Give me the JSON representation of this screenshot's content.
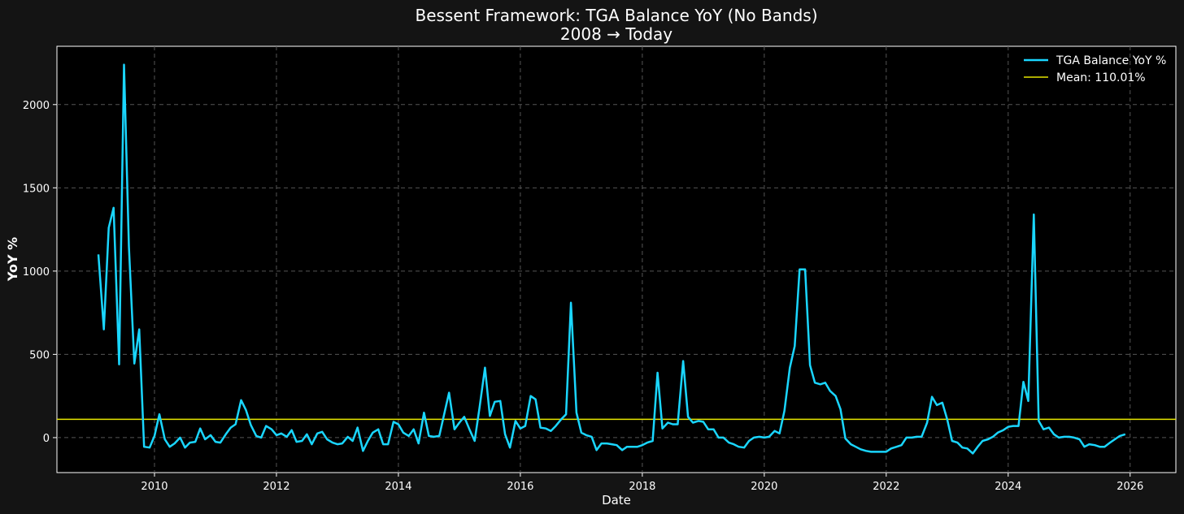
{
  "chart_data": {
    "type": "line",
    "title": "Bessent Framework: TGA Balance YoY (No Bands)",
    "subtitle": "2008 → Today",
    "xlabel": "Date",
    "ylabel": "YoY %",
    "xlim": [
      2008.4,
      2026.75
    ],
    "ylim": [
      -210,
      2350
    ],
    "xticks": [
      2010,
      2012,
      2014,
      2016,
      2018,
      2020,
      2022,
      2024,
      2026
    ],
    "yticks": [
      0,
      500,
      1000,
      1500,
      2000
    ],
    "grid": true,
    "legend_position": "top-right",
    "background": "#000000",
    "series": [
      {
        "name": "TGA Balance YoY %",
        "color": "#1ad6ff",
        "x": [
          2009.08,
          2009.17,
          2009.25,
          2009.33,
          2009.42,
          2009.5,
          2009.58,
          2009.67,
          2009.75,
          2009.83,
          2009.92,
          2010.0,
          2010.08,
          2010.17,
          2010.25,
          2010.33,
          2010.42,
          2010.5,
          2010.58,
          2010.67,
          2010.75,
          2010.83,
          2010.92,
          2011.0,
          2011.08,
          2011.17,
          2011.25,
          2011.33,
          2011.42,
          2011.5,
          2011.58,
          2011.67,
          2011.75,
          2011.83,
          2011.92,
          2012.0,
          2012.08,
          2012.17,
          2012.25,
          2012.33,
          2012.42,
          2012.5,
          2012.58,
          2012.67,
          2012.75,
          2012.83,
          2012.92,
          2013.0,
          2013.08,
          2013.17,
          2013.25,
          2013.33,
          2013.42,
          2013.5,
          2013.58,
          2013.67,
          2013.75,
          2013.83,
          2013.92,
          2014.0,
          2014.08,
          2014.17,
          2014.25,
          2014.33,
          2014.42,
          2014.5,
          2014.58,
          2014.67,
          2014.75,
          2014.83,
          2014.92,
          2015.0,
          2015.08,
          2015.17,
          2015.25,
          2015.33,
          2015.42,
          2015.5,
          2015.58,
          2015.67,
          2015.75,
          2015.83,
          2015.92,
          2016.0,
          2016.08,
          2016.17,
          2016.25,
          2016.33,
          2016.42,
          2016.5,
          2016.58,
          2016.67,
          2016.75,
          2016.83,
          2016.92,
          2017.0,
          2017.08,
          2017.17,
          2017.25,
          2017.33,
          2017.42,
          2017.5,
          2017.58,
          2017.67,
          2017.75,
          2017.83,
          2017.92,
          2018.0,
          2018.08,
          2018.17,
          2018.25,
          2018.33,
          2018.42,
          2018.5,
          2018.58,
          2018.67,
          2018.75,
          2018.83,
          2018.92,
          2019.0,
          2019.08,
          2019.17,
          2019.25,
          2019.33,
          2019.42,
          2019.5,
          2019.58,
          2019.67,
          2019.75,
          2019.83,
          2019.92,
          2020.0,
          2020.08,
          2020.17,
          2020.25,
          2020.33,
          2020.42,
          2020.5,
          2020.58,
          2020.67,
          2020.75,
          2020.83,
          2020.92,
          2021.0,
          2021.08,
          2021.17,
          2021.25,
          2021.33,
          2021.42,
          2021.5,
          2021.58,
          2021.67,
          2021.75,
          2021.83,
          2021.92,
          2022.0,
          2022.08,
          2022.17,
          2022.25,
          2022.33,
          2022.42,
          2022.5,
          2022.58,
          2022.67,
          2022.75,
          2022.83,
          2022.92,
          2023.0,
          2023.08,
          2023.17,
          2023.25,
          2023.33,
          2023.42,
          2023.5,
          2023.58,
          2023.67,
          2023.75,
          2023.83,
          2023.92,
          2024.0,
          2024.08,
          2024.17,
          2024.25,
          2024.33,
          2024.42,
          2024.5,
          2024.58,
          2024.67,
          2024.75,
          2024.83,
          2024.92,
          2025.0,
          2025.08,
          2025.17,
          2025.25,
          2025.33,
          2025.42,
          2025.5,
          2025.58,
          2025.67,
          2025.75,
          2025.83,
          2025.92
        ],
        "values": [
          1100,
          650,
          1260,
          1380,
          440,
          2240,
          1150,
          445,
          650,
          -55,
          -60,
          10,
          140,
          -10,
          -55,
          -35,
          0,
          -60,
          -30,
          -25,
          55,
          -10,
          15,
          -25,
          -30,
          20,
          60,
          80,
          225,
          165,
          75,
          10,
          0,
          70,
          50,
          15,
          25,
          5,
          45,
          -25,
          -20,
          20,
          -40,
          25,
          35,
          -10,
          -30,
          -40,
          -35,
          5,
          -20,
          60,
          -80,
          -20,
          30,
          50,
          -40,
          -40,
          95,
          80,
          30,
          10,
          50,
          -35,
          150,
          10,
          5,
          10,
          140,
          270,
          50,
          90,
          125,
          45,
          -20,
          180,
          420,
          130,
          215,
          220,
          20,
          -60,
          100,
          55,
          70,
          250,
          230,
          60,
          55,
          40,
          70,
          110,
          140,
          810,
          150,
          30,
          15,
          5,
          -75,
          -35,
          -35,
          -40,
          -45,
          -75,
          -55,
          -55,
          -55,
          -45,
          -30,
          -20,
          390,
          55,
          90,
          80,
          80,
          460,
          125,
          90,
          100,
          95,
          50,
          50,
          0,
          0,
          -30,
          -40,
          -55,
          -60,
          -20,
          0,
          5,
          0,
          5,
          40,
          25,
          160,
          420,
          550,
          1010,
          1010,
          435,
          330,
          320,
          330,
          280,
          250,
          170,
          -5,
          -40,
          -55,
          -70,
          -80,
          -85,
          -85,
          -85,
          -85,
          -65,
          -55,
          -45,
          0,
          0,
          5,
          5,
          90,
          245,
          195,
          210,
          110,
          -20,
          -30,
          -60,
          -65,
          -95,
          -55,
          -20,
          -10,
          5,
          30,
          45,
          65,
          70,
          70,
          335,
          220,
          1340,
          100,
          50,
          60,
          20,
          0,
          5,
          5,
          0,
          -10,
          -55,
          -40,
          -45,
          -55,
          -55,
          -30,
          -10,
          10,
          20
        ]
      },
      {
        "name": "Mean: 110.01%",
        "color": "#e6e600",
        "y": 110.01
      }
    ]
  }
}
